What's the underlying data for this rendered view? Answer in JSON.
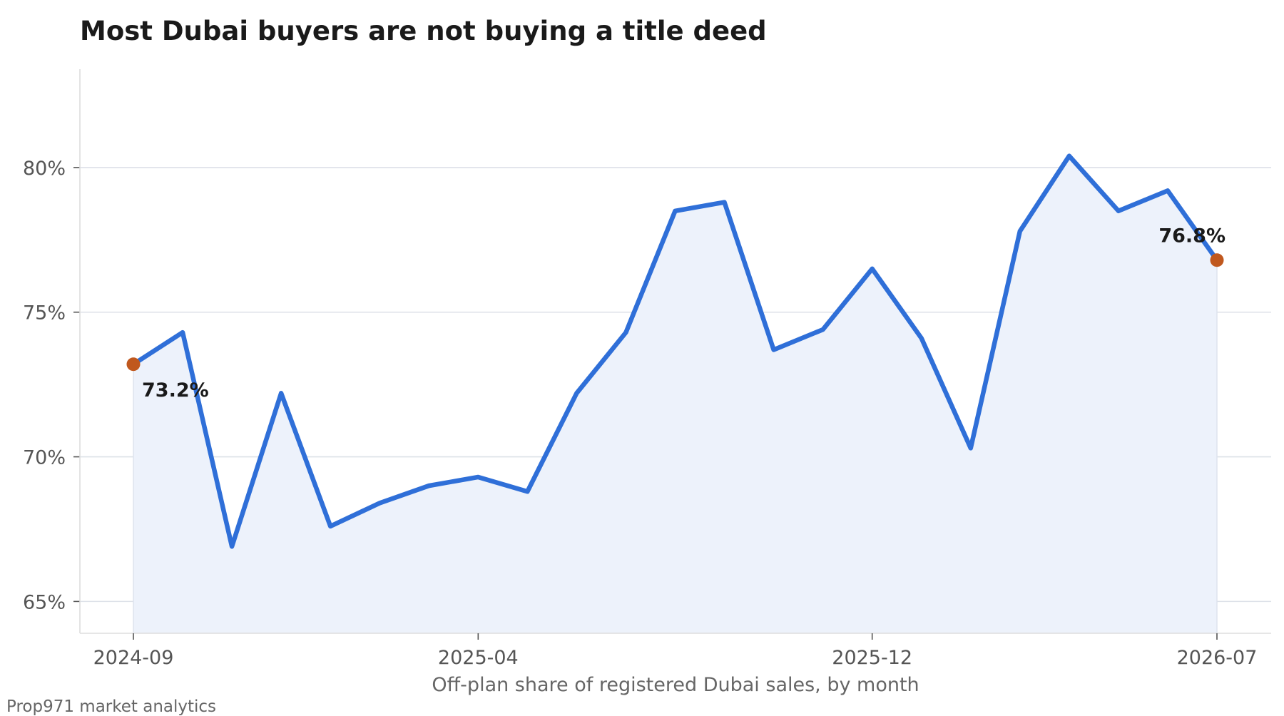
{
  "chart_data": {
    "type": "area",
    "title": "Most Dubai buyers are not buying a title deed",
    "xlabel": "Off-plan share of registered Dubai sales, by month",
    "ylabel": "",
    "source": "Prop971 market analytics",
    "x": [
      "2024-09",
      "2024-10",
      "2024-11",
      "2024-12",
      "2025-01",
      "2025-02",
      "2025-03",
      "2025-04",
      "2025-05",
      "2025-06",
      "2025-07",
      "2025-08",
      "2025-09",
      "2025-10",
      "2025-11",
      "2025-12",
      "2026-01",
      "2026-02",
      "2026-03",
      "2026-04",
      "2026-05",
      "2026-06",
      "2026-07"
    ],
    "series": [
      {
        "values": [
          73.2,
          74.3,
          66.9,
          72.2,
          67.6,
          68.4,
          69.0,
          69.3,
          68.8,
          72.2,
          74.3,
          78.5,
          78.8,
          73.7,
          74.4,
          76.5,
          74.1,
          70.3,
          77.8,
          80.4,
          78.5,
          79.2,
          76.8
        ]
      }
    ],
    "x_ticks": [
      "2024-09",
      "2025-04",
      "2025-12",
      "2026-07"
    ],
    "y_ticks": [
      65,
      70,
      75,
      80
    ],
    "y_tick_labels": [
      "65%",
      "70%",
      "75%",
      "80%"
    ],
    "ylim": [
      63.9,
      83.4
    ],
    "annotations": [
      {
        "x": "2024-09",
        "value": 73.2,
        "label": "73.2%"
      },
      {
        "x": "2026-07",
        "value": 76.8,
        "label": "76.8%"
      }
    ],
    "grid": "horizontal",
    "colors": {
      "line": "#2f6fd8",
      "fill": "#edf2fb",
      "marker": "#c0581e",
      "grid": "#dde1e8"
    }
  }
}
